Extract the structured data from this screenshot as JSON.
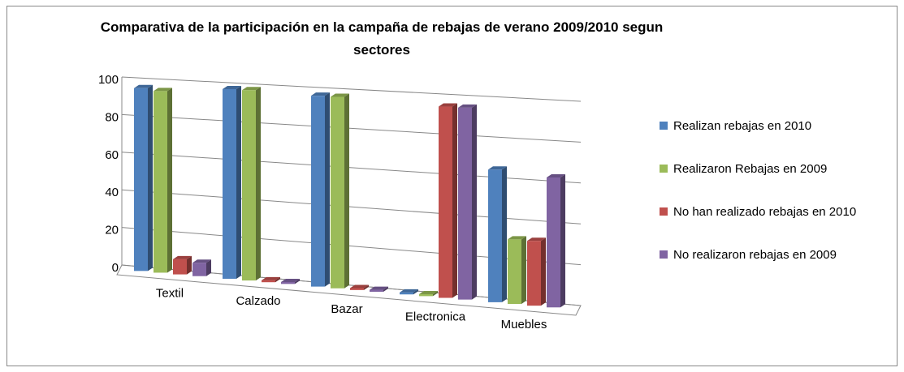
{
  "chart_data": {
    "type": "bar3d",
    "title": "Comparativa de la participación en la campaña de rebajas de verano 2009/2010 segun sectores",
    "categories": [
      "Textil",
      "Calzado",
      "Bazar",
      "Electronica",
      "Muebles"
    ],
    "series": [
      {
        "name": "Realizan rebajas en 2010",
        "color": "#4f81bd",
        "values": [
          97,
          99,
          98,
          1,
          66
        ]
      },
      {
        "name": "Realizaron Rebajas en 2009",
        "color": "#9bbb59",
        "values": [
          96,
          99,
          98,
          1,
          32
        ]
      },
      {
        "name": "No han realizado rebajas en 2010",
        "color": "#c0504d",
        "values": [
          8,
          1,
          1,
          96,
          32
        ]
      },
      {
        "name": "No realizaron rebajas en 2009",
        "color": "#8064a2",
        "values": [
          7,
          1,
          1,
          96,
          64
        ]
      }
    ],
    "ylim": [
      0,
      100
    ],
    "yticks": [
      0,
      20,
      40,
      60,
      80,
      100
    ],
    "grid": true,
    "legend": "right"
  }
}
